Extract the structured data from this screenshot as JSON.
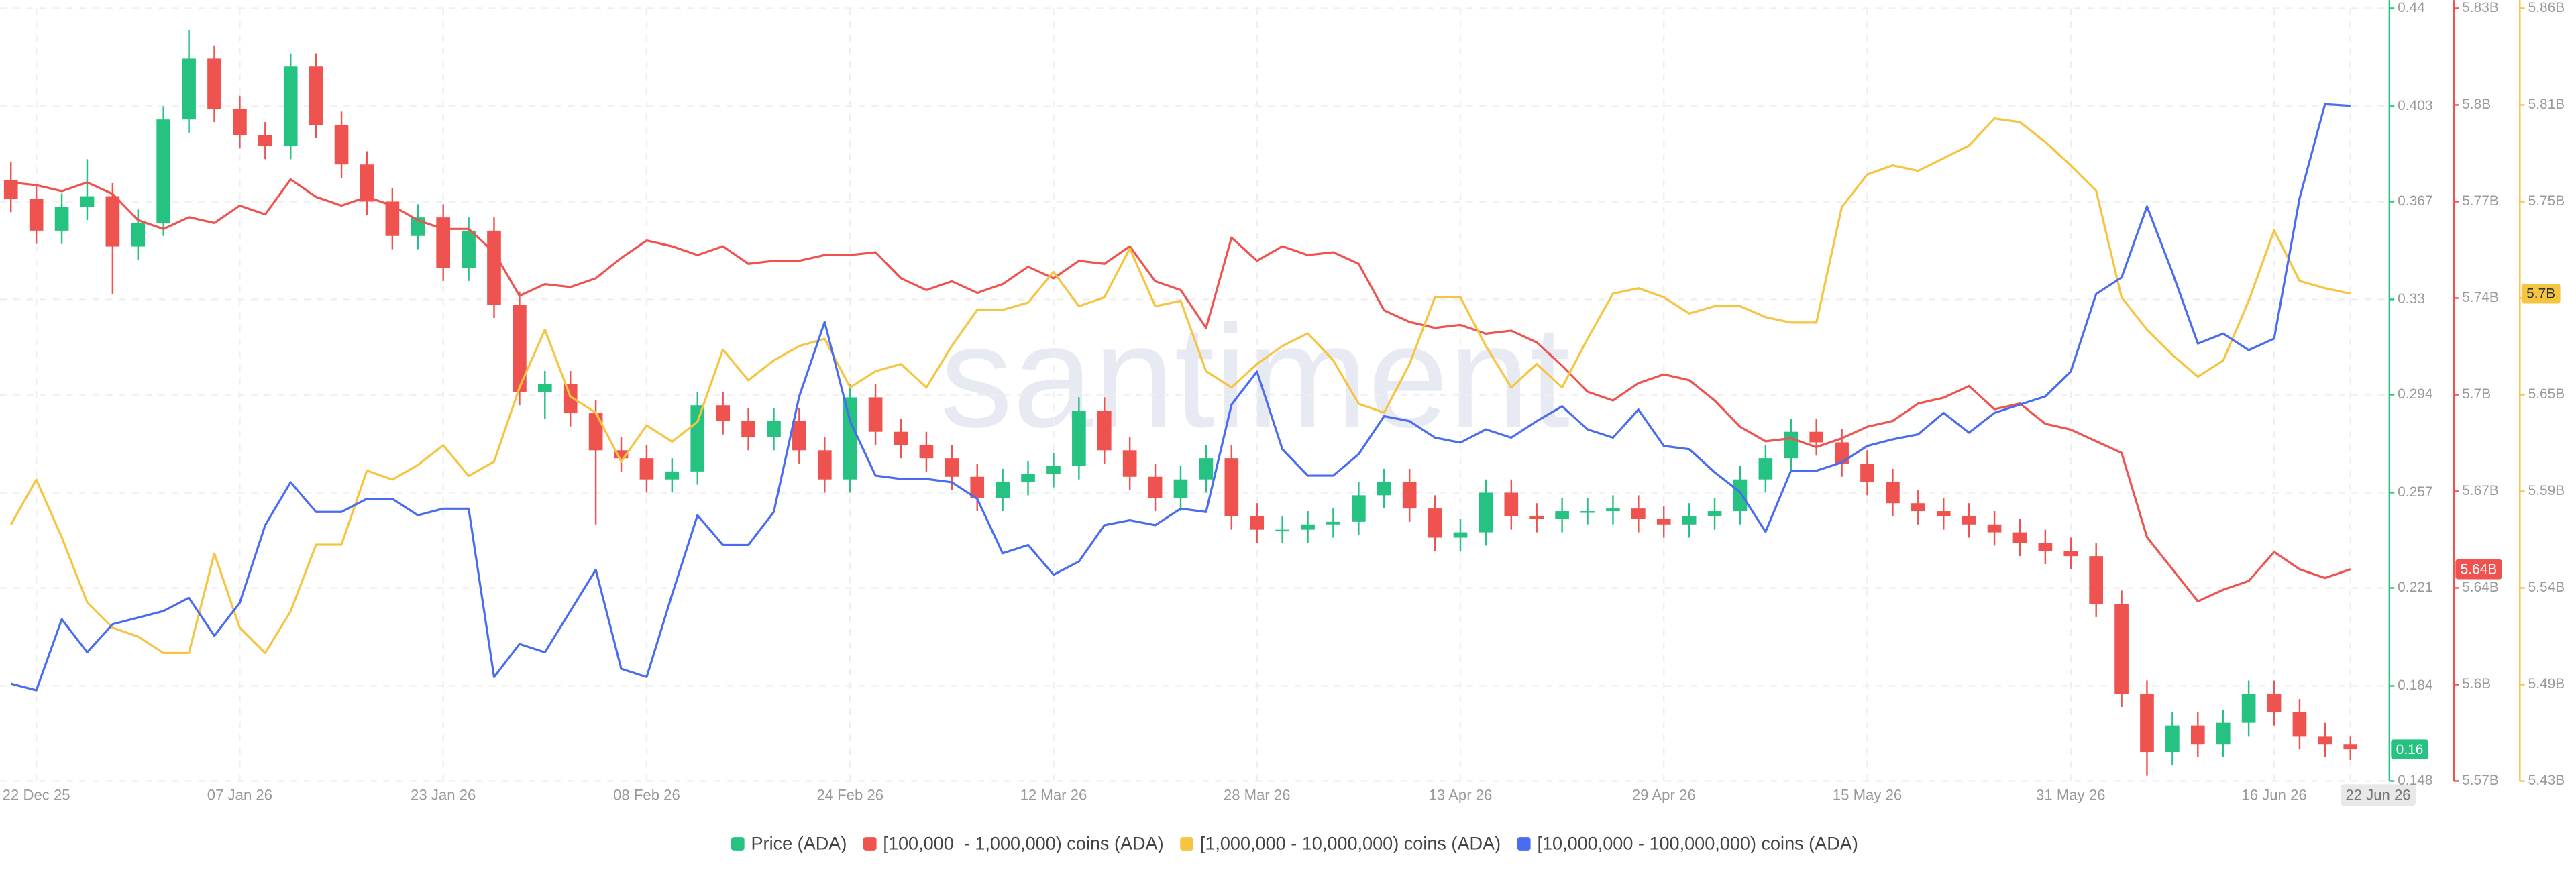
{
  "chart_data": {
    "type": "candlestick",
    "watermark": "santiment",
    "grid": true,
    "categories": [
      null,
      "22 Dec 25",
      null,
      null,
      null,
      null,
      null,
      null,
      null,
      "07 Jan 26",
      null,
      null,
      null,
      null,
      null,
      null,
      null,
      "23 Jan 26",
      null,
      null,
      null,
      null,
      null,
      null,
      null,
      "08 Feb 26",
      null,
      null,
      null,
      null,
      null,
      null,
      null,
      "24 Feb 26",
      null,
      null,
      null,
      null,
      null,
      null,
      null,
      "12 Mar 26",
      null,
      null,
      null,
      null,
      null,
      null,
      null,
      "28 Mar 26",
      null,
      null,
      null,
      null,
      null,
      null,
      null,
      "13 Apr 26",
      null,
      null,
      null,
      null,
      null,
      null,
      null,
      "29 Apr 26",
      null,
      null,
      null,
      null,
      null,
      null,
      null,
      "15 May 26",
      null,
      null,
      null,
      null,
      null,
      null,
      null,
      "31 May 26",
      null,
      null,
      null,
      null,
      null,
      null,
      null,
      "16 Jun 26",
      null,
      null,
      "22 Jun 26"
    ],
    "series": [
      {
        "name": "Price (ADA)",
        "type": "candlestick",
        "axis": "y",
        "color": "#26c281",
        "down_color": "#ef5350",
        "last_label": "0.16",
        "open": [
          0.375,
          0.368,
          0.356,
          0.365,
          0.369,
          0.35,
          0.359,
          0.398,
          0.421,
          0.402,
          0.392,
          0.388,
          0.418,
          0.396,
          0.381,
          0.367,
          0.354,
          0.361,
          0.342,
          0.356,
          0.328,
          0.295,
          0.298,
          0.287,
          0.273,
          0.27,
          0.262,
          0.265,
          0.29,
          0.284,
          0.278,
          0.284,
          0.273,
          0.262,
          0.293,
          0.28,
          0.275,
          0.27,
          0.263,
          0.255,
          0.261,
          0.264,
          0.267,
          0.288,
          0.273,
          0.263,
          0.255,
          0.262,
          0.27,
          0.248,
          0.243,
          0.243,
          0.245,
          0.246,
          0.256,
          0.261,
          0.251,
          0.24,
          0.242,
          0.257,
          0.248,
          0.247,
          0.25,
          0.25,
          0.251,
          0.247,
          0.245,
          0.248,
          0.25,
          0.262,
          0.27,
          0.28,
          0.276,
          0.268,
          0.261,
          0.253,
          0.25,
          0.248,
          0.245,
          0.242,
          0.238,
          0.235,
          0.233,
          0.215,
          0.181,
          0.159,
          0.169,
          0.162,
          0.17,
          0.181,
          0.174,
          0.165,
          0.162
        ],
        "high": [
          0.382,
          0.373,
          0.37,
          0.383,
          0.374,
          0.364,
          0.403,
          0.432,
          0.426,
          0.407,
          0.397,
          0.423,
          0.423,
          0.401,
          0.386,
          0.372,
          0.366,
          0.366,
          0.361,
          0.361,
          0.333,
          0.303,
          0.303,
          0.292,
          0.278,
          0.275,
          0.27,
          0.295,
          0.295,
          0.289,
          0.289,
          0.289,
          0.278,
          0.298,
          0.298,
          0.285,
          0.28,
          0.275,
          0.268,
          0.266,
          0.269,
          0.272,
          0.293,
          0.293,
          0.278,
          0.268,
          0.267,
          0.275,
          0.275,
          0.253,
          0.248,
          0.25,
          0.251,
          0.261,
          0.266,
          0.266,
          0.256,
          0.247,
          0.262,
          0.262,
          0.253,
          0.255,
          0.255,
          0.256,
          0.256,
          0.252,
          0.253,
          0.255,
          0.267,
          0.275,
          0.285,
          0.285,
          0.281,
          0.273,
          0.266,
          0.258,
          0.255,
          0.253,
          0.25,
          0.247,
          0.243,
          0.24,
          0.238,
          0.22,
          0.186,
          0.174,
          0.174,
          0.175,
          0.186,
          0.186,
          0.179,
          0.17,
          0.165
        ],
        "low": [
          0.363,
          0.351,
          0.351,
          0.36,
          0.332,
          0.345,
          0.354,
          0.393,
          0.397,
          0.387,
          0.383,
          0.383,
          0.391,
          0.376,
          0.362,
          0.349,
          0.349,
          0.337,
          0.337,
          0.323,
          0.29,
          0.285,
          0.282,
          0.245,
          0.265,
          0.257,
          0.257,
          0.26,
          0.279,
          0.273,
          0.273,
          0.268,
          0.257,
          0.257,
          0.275,
          0.27,
          0.265,
          0.258,
          0.25,
          0.25,
          0.256,
          0.259,
          0.262,
          0.268,
          0.258,
          0.25,
          0.25,
          0.257,
          0.243,
          0.238,
          0.238,
          0.238,
          0.24,
          0.241,
          0.251,
          0.246,
          0.235,
          0.235,
          0.237,
          0.243,
          0.242,
          0.242,
          0.245,
          0.245,
          0.242,
          0.24,
          0.24,
          0.243,
          0.245,
          0.257,
          0.265,
          0.271,
          0.263,
          0.256,
          0.248,
          0.245,
          0.243,
          0.24,
          0.237,
          0.233,
          0.23,
          0.228,
          0.21,
          0.176,
          0.15,
          0.154,
          0.157,
          0.157,
          0.165,
          0.169,
          0.16,
          0.157,
          0.156
        ],
        "close": [
          0.368,
          0.356,
          0.365,
          0.369,
          0.35,
          0.359,
          0.398,
          0.421,
          0.402,
          0.392,
          0.388,
          0.418,
          0.396,
          0.381,
          0.367,
          0.354,
          0.361,
          0.342,
          0.356,
          0.328,
          0.295,
          0.298,
          0.287,
          0.273,
          0.27,
          0.262,
          0.265,
          0.29,
          0.284,
          0.278,
          0.284,
          0.273,
          0.262,
          0.293,
          0.28,
          0.275,
          0.27,
          0.263,
          0.255,
          0.261,
          0.264,
          0.267,
          0.288,
          0.273,
          0.263,
          0.255,
          0.262,
          0.27,
          0.248,
          0.243,
          0.243,
          0.245,
          0.246,
          0.256,
          0.261,
          0.251,
          0.24,
          0.242,
          0.257,
          0.248,
          0.247,
          0.25,
          0.25,
          0.251,
          0.247,
          0.245,
          0.248,
          0.25,
          0.262,
          0.27,
          0.28,
          0.276,
          0.268,
          0.261,
          0.253,
          0.25,
          0.248,
          0.245,
          0.242,
          0.238,
          0.235,
          0.233,
          0.215,
          0.181,
          0.159,
          0.169,
          0.162,
          0.17,
          0.181,
          0.174,
          0.165,
          0.162,
          0.16
        ]
      },
      {
        "name": "[100,000  - 1,000,000) coins (ADA)",
        "type": "line",
        "axis": "y2",
        "color": "#ef5350",
        "last_label": "5.64B",
        "values": [
          5.775,
          5.774,
          5.772,
          5.775,
          5.771,
          5.762,
          5.759,
          5.763,
          5.761,
          5.767,
          5.764,
          5.776,
          5.77,
          5.767,
          5.77,
          5.767,
          5.762,
          5.759,
          5.759,
          5.751,
          5.736,
          5.74,
          5.739,
          5.742,
          5.749,
          5.755,
          5.753,
          5.75,
          5.753,
          5.747,
          5.748,
          5.748,
          5.75,
          5.75,
          5.751,
          5.742,
          5.738,
          5.741,
          5.737,
          5.74,
          5.746,
          5.742,
          5.748,
          5.747,
          5.753,
          5.741,
          5.738,
          5.725,
          5.756,
          5.748,
          5.753,
          5.75,
          5.751,
          5.747,
          5.731,
          5.727,
          5.725,
          5.726,
          5.723,
          5.724,
          5.72,
          5.712,
          5.703,
          5.7,
          5.706,
          5.709,
          5.707,
          5.7,
          5.691,
          5.686,
          5.687,
          5.684,
          5.687,
          5.691,
          5.693,
          5.699,
          5.701,
          5.705,
          5.697,
          5.699,
          5.692,
          5.69,
          5.686,
          5.682,
          5.653,
          5.642,
          5.631,
          5.635,
          5.638,
          5.648,
          5.642,
          5.639,
          5.642
        ]
      },
      {
        "name": "[1,000,000 - 10,000,000) coins (ADA)",
        "type": "line",
        "axis": "y3",
        "color": "#f5c440",
        "last_label": "5.7B",
        "values": [
          5.574,
          5.599,
          5.567,
          5.531,
          5.517,
          5.512,
          5.503,
          5.503,
          5.558,
          5.517,
          5.503,
          5.526,
          5.563,
          5.563,
          5.604,
          5.599,
          5.607,
          5.618,
          5.601,
          5.609,
          5.65,
          5.682,
          5.645,
          5.636,
          5.609,
          5.629,
          5.62,
          5.631,
          5.671,
          5.654,
          5.665,
          5.673,
          5.677,
          5.65,
          5.659,
          5.663,
          5.65,
          5.673,
          5.693,
          5.693,
          5.697,
          5.714,
          5.695,
          5.7,
          5.727,
          5.695,
          5.698,
          5.659,
          5.65,
          5.663,
          5.673,
          5.68,
          5.665,
          5.641,
          5.636,
          5.663,
          5.7,
          5.7,
          5.673,
          5.65,
          5.663,
          5.65,
          5.677,
          5.702,
          5.705,
          5.7,
          5.691,
          5.695,
          5.695,
          5.689,
          5.686,
          5.686,
          5.75,
          5.768,
          5.773,
          5.77,
          5.777,
          5.784,
          5.799,
          5.797,
          5.786,
          5.773,
          5.759,
          5.7,
          5.682,
          5.668,
          5.656,
          5.665,
          5.698,
          5.737,
          5.709,
          5.705,
          5.702
        ]
      },
      {
        "name": "[10,000,000 - 100,000,000) coins (ADA)",
        "type": "line",
        "axis": "y4",
        "color": "#4a6cf0",
        "values": [
          9.091,
          9.087,
          9.13,
          9.11,
          9.127,
          9.131,
          9.135,
          9.143,
          9.12,
          9.14,
          9.187,
          9.213,
          9.195,
          9.195,
          9.203,
          9.203,
          9.193,
          9.197,
          9.197,
          9.095,
          9.115,
          9.11,
          9.135,
          9.16,
          9.1,
          9.095,
          9.145,
          9.193,
          9.175,
          9.175,
          9.195,
          9.265,
          9.31,
          9.25,
          9.217,
          9.215,
          9.215,
          9.213,
          9.203,
          9.17,
          9.175,
          9.157,
          9.165,
          9.187,
          9.19,
          9.187,
          9.197,
          9.195,
          9.26,
          9.28,
          9.233,
          9.217,
          9.217,
          9.23,
          9.253,
          9.25,
          9.24,
          9.237,
          9.245,
          9.24,
          9.25,
          9.259,
          9.245,
          9.24,
          9.257,
          9.235,
          9.233,
          9.219,
          9.207,
          9.183,
          9.22,
          9.22,
          9.225,
          9.235,
          9.239,
          9.242,
          9.255,
          9.243,
          9.255,
          9.26,
          9.265,
          9.28,
          9.327,
          9.337,
          9.38,
          9.34,
          9.297,
          9.303,
          9.293,
          9.3,
          9.385,
          9.442,
          9.441
        ]
      }
    ],
    "ylim": [
      0.148,
      0.44
    ],
    "yticks": [
      0.44,
      0.403,
      0.367,
      0.33,
      0.294,
      0.257,
      0.221,
      0.184,
      0.148
    ],
    "y2lim": [
      5.5692,
      5.8348
    ],
    "y2ticks": [
      {
        "value": 5.8348,
        "label": "5.83B"
      },
      {
        "value": 5.8016,
        "label": "5.8B"
      },
      {
        "value": 5.7684,
        "label": "5.77B"
      },
      {
        "value": 5.7352,
        "label": "5.74B"
      },
      {
        "value": 5.702,
        "label": "5.7B"
      },
      {
        "value": 5.6688,
        "label": "5.67B"
      },
      {
        "value": 5.6356,
        "label": "5.64B"
      },
      {
        "value": 5.6024,
        "label": "5.6B"
      },
      {
        "value": 5.5692,
        "label": "5.57B"
      }
    ],
    "y3lim": [
      5.432,
      5.86
    ],
    "y3ticks": [
      {
        "value": 5.86,
        "label": "5.86B"
      },
      {
        "value": 5.8065,
        "label": "5.81B"
      },
      {
        "value": 5.753,
        "label": "5.75B"
      },
      {
        "value": 5.6995,
        "label": "5.7B"
      },
      {
        "value": 5.646,
        "label": "5.65B"
      },
      {
        "value": 5.5925,
        "label": "5.59B"
      },
      {
        "value": 5.539,
        "label": "5.54B"
      },
      {
        "value": 5.4855,
        "label": "5.49B"
      },
      {
        "value": 5.432,
        "label": "5.43B"
      }
    ],
    "y4lim": [
      9.032,
      9.5
    ]
  }
}
